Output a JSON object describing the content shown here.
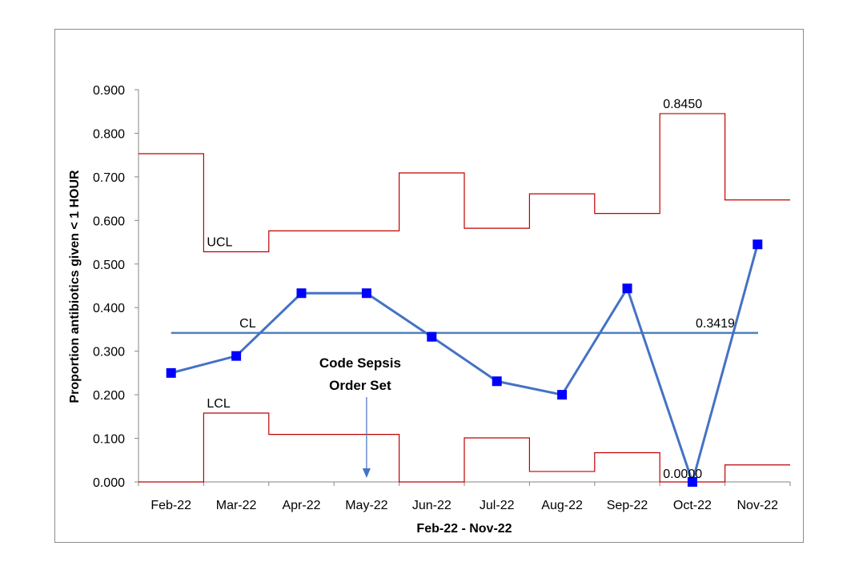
{
  "chart_data": {
    "type": "line",
    "title": "",
    "xlabel": "Feb-22 - Nov-22",
    "ylabel": "Proportion antibiotics given < 1 HOUR",
    "ylim": [
      0,
      0.9
    ],
    "yticks": [
      "0.000",
      "0.100",
      "0.200",
      "0.300",
      "0.400",
      "0.500",
      "0.600",
      "0.700",
      "0.800",
      "0.900"
    ],
    "categories": [
      "Feb-22",
      "Mar-22",
      "Apr-22",
      "May-22",
      "Jun-22",
      "Jul-22",
      "Aug-22",
      "Sep-22",
      "Oct-22",
      "Nov-22"
    ],
    "series": [
      {
        "values": [
          0.25,
          0.289,
          0.433,
          0.433,
          0.333,
          0.231,
          0.2,
          0.444,
          0.0,
          0.545
        ],
        "color": "#4472c4",
        "marker_color": "#0000ff"
      },
      {
        "name": "UCL",
        "values": [
          0.753,
          0.528,
          0.576,
          0.576,
          0.709,
          0.582,
          0.661,
          0.616,
          0.845,
          0.647
        ],
        "color": "#c00000"
      },
      {
        "name": "LCL",
        "values": [
          0.0,
          0.158,
          0.109,
          0.109,
          0.0,
          0.101,
          0.024,
          0.067,
          0.0,
          0.039
        ],
        "color": "#c00000"
      },
      {
        "name": "CL",
        "values": [
          0.3419,
          0.3419,
          0.3419,
          0.3419,
          0.3419,
          0.3419,
          0.3419,
          0.3419,
          0.3419,
          0.3419
        ],
        "color": "#4f81bd"
      }
    ],
    "value_labels": {
      "ucl_max": "0.8450",
      "lcl_min": "0.0000",
      "cl": "0.3419"
    },
    "annotation": {
      "text_line1": "Code Sepsis",
      "text_line2": "Order Set",
      "category": "May-22",
      "color": "#4472c4"
    },
    "grid": false,
    "legend": "none"
  }
}
